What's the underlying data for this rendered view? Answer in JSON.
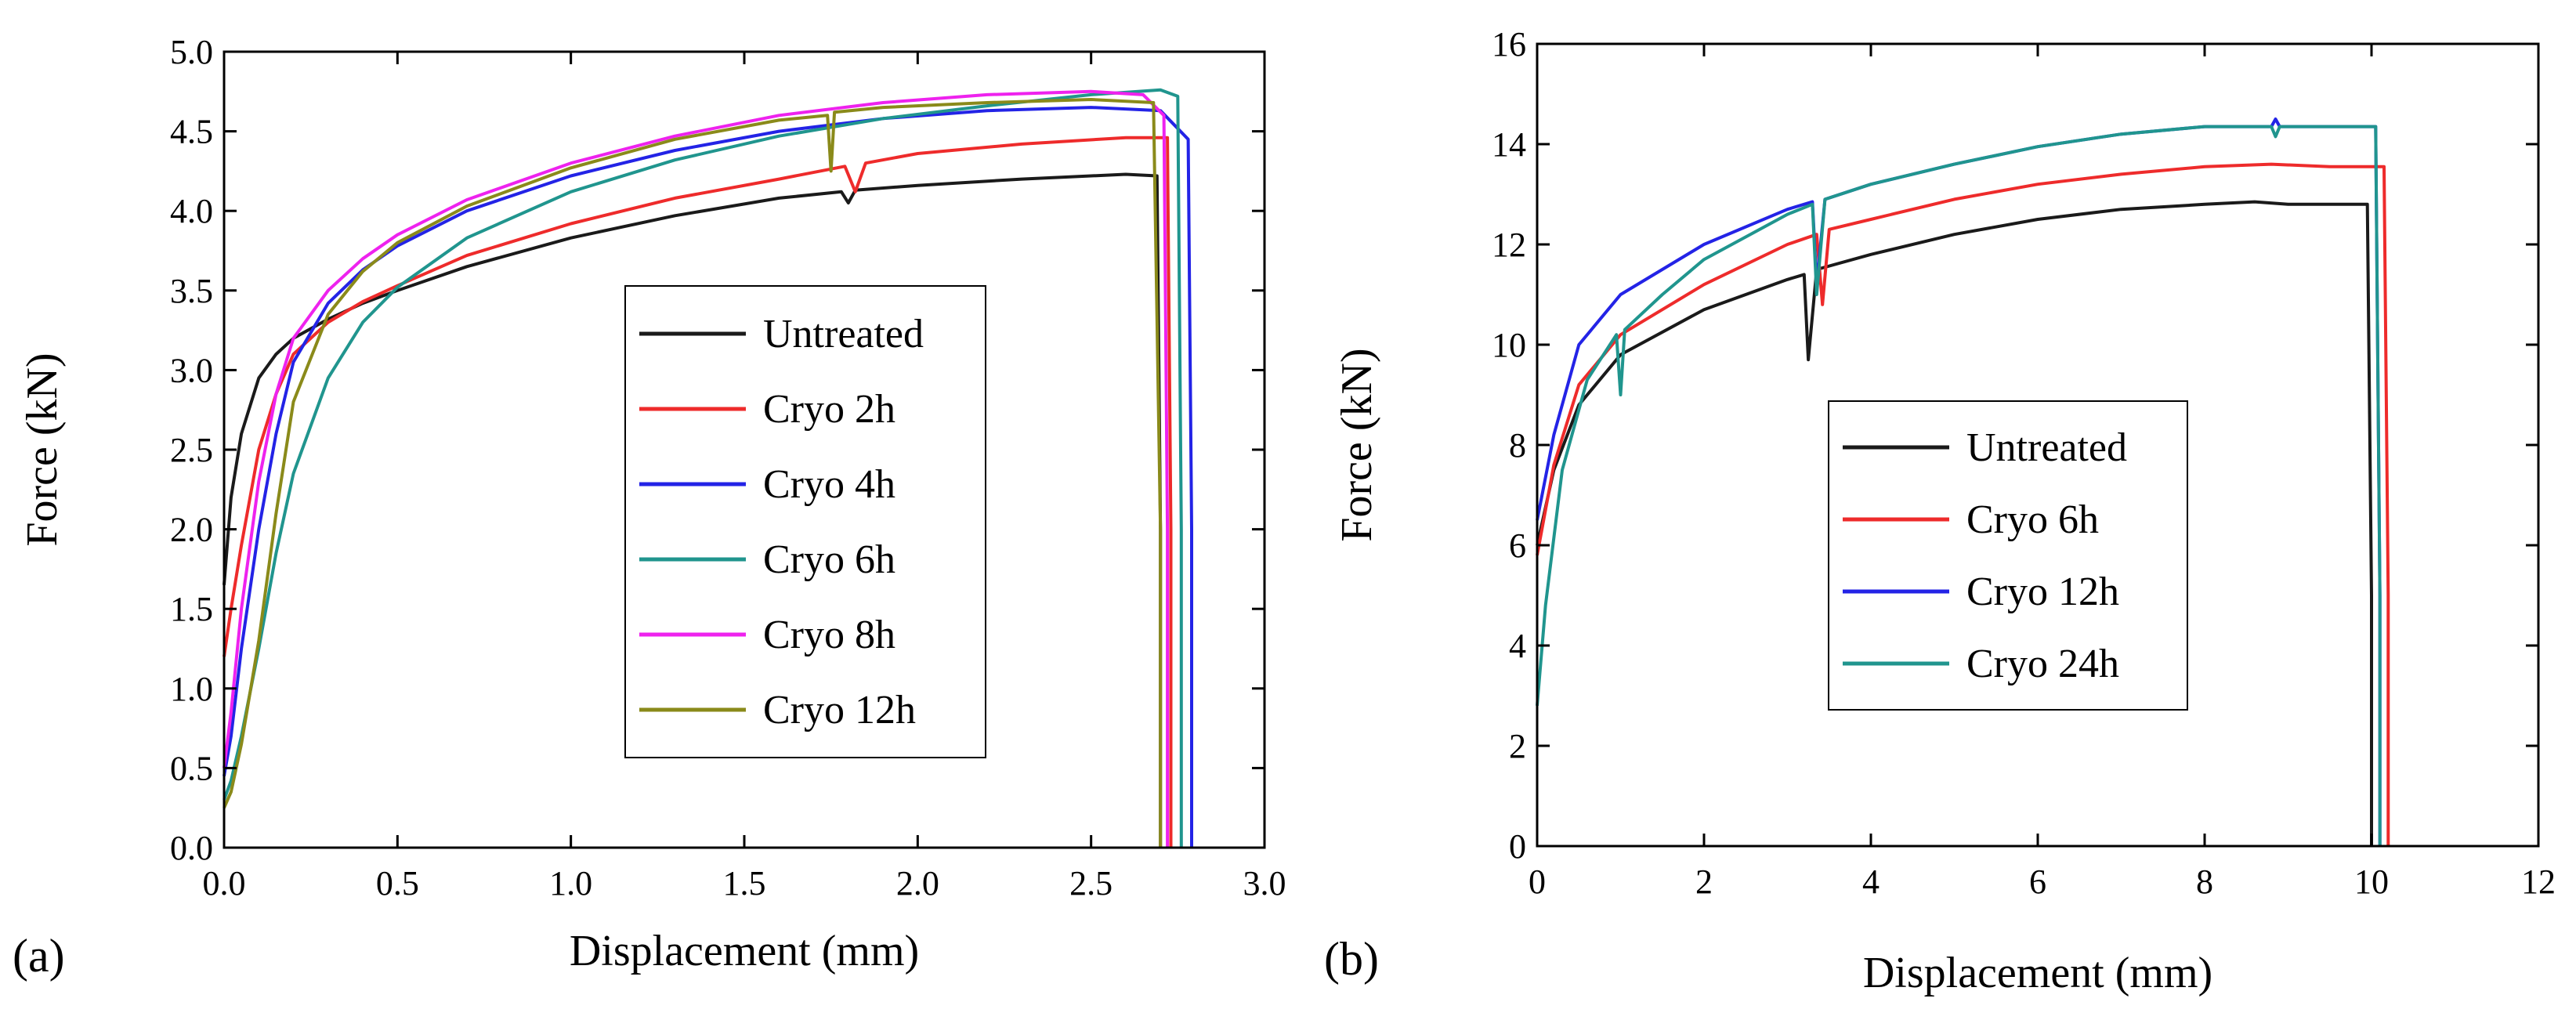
{
  "chart_data": [
    {
      "type": "line",
      "panel_label": "(a)",
      "xlabel": "Displacement (mm)",
      "ylabel": "Force (kN)",
      "xlim": [
        0.0,
        3.0
      ],
      "ylim": [
        0.0,
        5.0
      ],
      "xticks": [
        "0.0",
        "0.5",
        "1.0",
        "1.5",
        "2.0",
        "2.5",
        "3.0"
      ],
      "xtick_values": [
        0,
        0.5,
        1.0,
        1.5,
        2.0,
        2.5,
        3.0
      ],
      "yticks": [
        "0.0",
        "0.5",
        "1.0",
        "1.5",
        "2.0",
        "2.5",
        "3.0",
        "3.5",
        "4.0",
        "4.5",
        "5.0"
      ],
      "ytick_values": [
        0,
        0.5,
        1.0,
        1.5,
        2.0,
        2.5,
        3.0,
        3.5,
        4.0,
        4.5,
        5.0
      ],
      "legend_position": "center-right",
      "series": [
        {
          "name": "Untreated",
          "color": "#1a1a1a",
          "x": [
            0.0,
            0.02,
            0.05,
            0.1,
            0.15,
            0.2,
            0.3,
            0.4,
            0.5,
            0.7,
            1.0,
            1.3,
            1.6,
            1.78,
            1.8,
            1.82,
            2.0,
            2.3,
            2.6,
            2.69,
            2.7,
            2.7
          ],
          "y": [
            1.65,
            2.2,
            2.6,
            2.95,
            3.1,
            3.2,
            3.32,
            3.42,
            3.5,
            3.65,
            3.83,
            3.97,
            4.08,
            4.12,
            4.05,
            4.13,
            4.16,
            4.2,
            4.23,
            4.22,
            2.0,
            0.0
          ]
        },
        {
          "name": "Cryo 2h",
          "color": "#ee2b2b",
          "x": [
            0.0,
            0.02,
            0.05,
            0.1,
            0.15,
            0.2,
            0.3,
            0.4,
            0.5,
            0.7,
            1.0,
            1.3,
            1.6,
            1.79,
            1.82,
            1.85,
            2.0,
            2.3,
            2.6,
            2.72,
            2.73,
            2.73
          ],
          "y": [
            1.2,
            1.5,
            1.9,
            2.5,
            2.85,
            3.1,
            3.3,
            3.43,
            3.53,
            3.72,
            3.92,
            4.08,
            4.2,
            4.28,
            4.12,
            4.3,
            4.36,
            4.42,
            4.46,
            4.46,
            2.0,
            0.0
          ]
        },
        {
          "name": "Cryo 4h",
          "color": "#2323e6",
          "x": [
            0.0,
            0.02,
            0.05,
            0.1,
            0.15,
            0.2,
            0.3,
            0.4,
            0.5,
            0.7,
            1.0,
            1.3,
            1.6,
            1.9,
            2.2,
            2.5,
            2.7,
            2.78,
            2.79,
            2.79
          ],
          "y": [
            0.45,
            0.7,
            1.25,
            2.0,
            2.6,
            3.05,
            3.42,
            3.63,
            3.78,
            4.0,
            4.22,
            4.38,
            4.5,
            4.58,
            4.63,
            4.65,
            4.63,
            4.45,
            2.0,
            0.0
          ]
        },
        {
          "name": "Cryo 6h",
          "color": "#20958e",
          "x": [
            0.0,
            0.02,
            0.05,
            0.1,
            0.15,
            0.2,
            0.3,
            0.4,
            0.5,
            0.7,
            1.0,
            1.3,
            1.6,
            1.9,
            2.2,
            2.5,
            2.7,
            2.75,
            2.76,
            2.76
          ],
          "y": [
            0.3,
            0.42,
            0.7,
            1.25,
            1.85,
            2.35,
            2.95,
            3.3,
            3.52,
            3.83,
            4.12,
            4.32,
            4.47,
            4.58,
            4.66,
            4.73,
            4.76,
            4.72,
            2.0,
            0.0
          ]
        },
        {
          "name": "Cryo 8h",
          "color": "#ee22ee",
          "x": [
            0.0,
            0.02,
            0.05,
            0.1,
            0.15,
            0.2,
            0.3,
            0.4,
            0.5,
            0.7,
            1.0,
            1.3,
            1.6,
            1.9,
            2.2,
            2.5,
            2.65,
            2.71,
            2.72,
            2.72
          ],
          "y": [
            0.5,
            0.85,
            1.5,
            2.3,
            2.85,
            3.2,
            3.5,
            3.7,
            3.85,
            4.07,
            4.3,
            4.47,
            4.6,
            4.68,
            4.73,
            4.75,
            4.73,
            4.6,
            2.0,
            0.0
          ]
        },
        {
          "name": "Cryo 12h",
          "color": "#8a8a1a",
          "x": [
            0.0,
            0.02,
            0.05,
            0.1,
            0.15,
            0.2,
            0.3,
            0.4,
            0.5,
            0.7,
            1.0,
            1.3,
            1.6,
            1.74,
            1.75,
            1.76,
            1.9,
            2.2,
            2.5,
            2.68,
            2.7,
            2.7
          ],
          "y": [
            0.25,
            0.35,
            0.65,
            1.3,
            2.1,
            2.8,
            3.35,
            3.62,
            3.8,
            4.03,
            4.27,
            4.45,
            4.57,
            4.6,
            4.25,
            4.62,
            4.65,
            4.68,
            4.7,
            4.68,
            2.0,
            0.0
          ]
        }
      ],
      "legend": [
        "Untreated",
        "Cryo 2h",
        "Cryo 4h",
        "Cryo 6h",
        "Cryo 8h",
        "Cryo 12h"
      ]
    },
    {
      "type": "line",
      "panel_label": "(b)",
      "xlabel": "Displacement (mm)",
      "ylabel": "Force (kN)",
      "xlim": [
        0,
        12
      ],
      "ylim": [
        0,
        16
      ],
      "xticks": [
        "0",
        "2",
        "4",
        "6",
        "8",
        "10",
        "12"
      ],
      "xtick_values": [
        0,
        2,
        4,
        6,
        8,
        10,
        12
      ],
      "yticks": [
        "0",
        "2",
        "4",
        "6",
        "8",
        "10",
        "12",
        "14",
        "16"
      ],
      "ytick_values": [
        0,
        2,
        4,
        6,
        8,
        10,
        12,
        14,
        16
      ],
      "legend_position": "center",
      "series": [
        {
          "name": "Untreated",
          "color": "#1a1a1a",
          "x": [
            0.0,
            0.2,
            0.5,
            1.0,
            2.0,
            3.0,
            3.2,
            3.25,
            3.35,
            4.0,
            5.0,
            6.0,
            7.0,
            8.0,
            8.6,
            9.0,
            9.95,
            10.0,
            10.0
          ],
          "y": [
            6.0,
            7.5,
            8.8,
            9.8,
            10.7,
            11.3,
            11.4,
            9.7,
            11.5,
            11.8,
            12.2,
            12.5,
            12.7,
            12.8,
            12.85,
            12.8,
            12.8,
            5.0,
            0.0
          ]
        },
        {
          "name": "Cryo 6h",
          "color": "#ee2b2b",
          "x": [
            0.0,
            0.2,
            0.5,
            1.0,
            2.0,
            3.0,
            3.35,
            3.42,
            3.5,
            4.0,
            5.0,
            6.0,
            7.0,
            8.0,
            8.8,
            9.5,
            10.15,
            10.2,
            10.2
          ],
          "y": [
            5.8,
            7.6,
            9.2,
            10.2,
            11.2,
            12.0,
            12.2,
            10.8,
            12.3,
            12.5,
            12.9,
            13.2,
            13.4,
            13.55,
            13.6,
            13.55,
            13.55,
            5.0,
            0.0
          ]
        },
        {
          "name": "Cryo 12h",
          "color": "#2323e6",
          "x": [
            0.0,
            0.2,
            0.5,
            1.0,
            2.0,
            3.0,
            3.3,
            3.35,
            3.45,
            4.0,
            5.0,
            6.0,
            7.0,
            8.0,
            8.8,
            8.85,
            8.9,
            9.5,
            10.05,
            10.1,
            10.1
          ],
          "y": [
            6.5,
            8.2,
            10.0,
            11.0,
            12.0,
            12.7,
            12.85,
            11.2,
            12.9,
            13.2,
            13.6,
            13.95,
            14.2,
            14.35,
            14.35,
            14.5,
            14.35,
            14.35,
            14.35,
            5.0,
            0.0
          ]
        },
        {
          "name": "Cryo 24h",
          "color": "#20958e",
          "x": [
            0.0,
            0.1,
            0.3,
            0.6,
            0.95,
            1.0,
            1.05,
            1.5,
            2.0,
            3.0,
            3.3,
            3.35,
            3.45,
            4.0,
            5.0,
            6.0,
            7.0,
            8.0,
            8.8,
            8.85,
            8.9,
            9.5,
            10.05,
            10.1,
            10.1
          ],
          "y": [
            2.8,
            4.8,
            7.5,
            9.3,
            10.2,
            9.0,
            10.3,
            11.0,
            11.7,
            12.6,
            12.8,
            11.0,
            12.9,
            13.2,
            13.6,
            13.95,
            14.2,
            14.35,
            14.35,
            14.15,
            14.35,
            14.35,
            14.35,
            5.0,
            0.0
          ]
        }
      ],
      "legend": [
        "Untreated",
        "Cryo 6h",
        "Cryo 12h",
        "Cryo 24h"
      ]
    }
  ]
}
